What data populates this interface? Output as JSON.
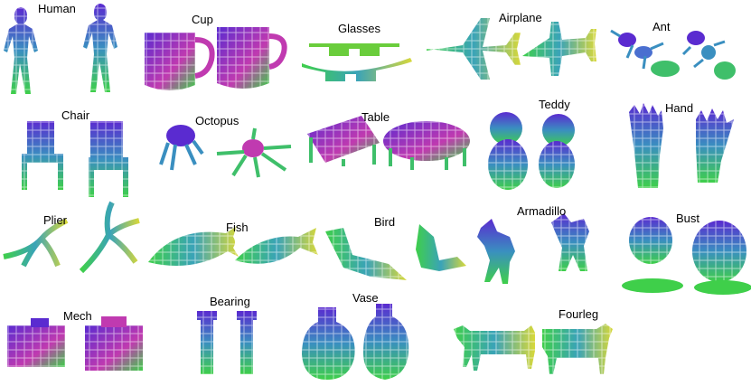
{
  "labels": {
    "human": "Human",
    "cup": "Cup",
    "glasses": "Glasses",
    "airplane": "Airplane",
    "ant": "Ant",
    "chair": "Chair",
    "octopus": "Octopus",
    "table": "Table",
    "teddy": "Teddy",
    "hand": "Hand",
    "plier": "Plier",
    "fish": "Fish",
    "bird": "Bird",
    "armadillo": "Armadillo",
    "bust": "Bust",
    "mech": "Mech",
    "bearing": "Bearing",
    "vase": "Vase",
    "fourleg": "Fourleg"
  },
  "colors": {
    "top": "#5a2bd0",
    "mid": "#3aa3b8",
    "bottom": "#3fcf4a",
    "accent_pink": "#e0409a",
    "accent_yellow": "#d8d83a"
  }
}
